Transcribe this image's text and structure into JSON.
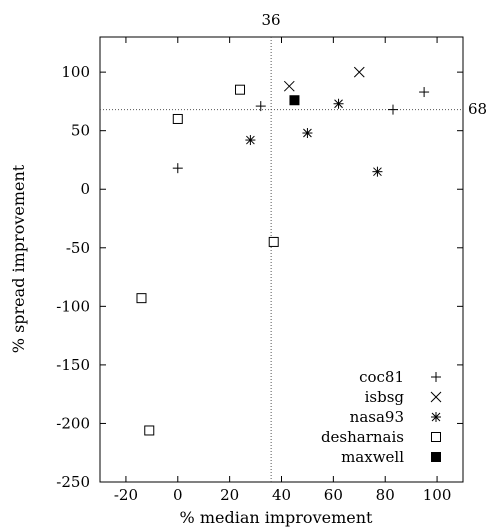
{
  "chart_data": {
    "type": "scatter",
    "title": "",
    "xlabel": "% median improvement",
    "ylabel": "% spread improvement",
    "xlim": [
      -30,
      110
    ],
    "ylim": [
      -250,
      130
    ],
    "x_ticks": [
      -20,
      0,
      20,
      40,
      60,
      80,
      100
    ],
    "y_ticks": [
      -250,
      -200,
      -150,
      -100,
      -50,
      0,
      50,
      100
    ],
    "grid": false,
    "legend_position": "bottom-right",
    "reference_lines": {
      "x": {
        "value": 36,
        "label": "36"
      },
      "y": {
        "value": 68,
        "label": "68"
      }
    },
    "series": [
      {
        "name": "coc81",
        "marker": "plus",
        "x": [
          0,
          32,
          83,
          95
        ],
        "y": [
          18,
          71,
          68,
          83
        ]
      },
      {
        "name": "isbsg",
        "marker": "cross",
        "x": [
          43,
          70
        ],
        "y": [
          88,
          100
        ]
      },
      {
        "name": "nasa93",
        "marker": "asterisk",
        "x": [
          28,
          50,
          62,
          77
        ],
        "y": [
          42,
          48,
          73,
          15
        ]
      },
      {
        "name": "desharnais",
        "marker": "open-square",
        "x": [
          0,
          24,
          37,
          -14,
          -11
        ],
        "y": [
          60,
          85,
          -45,
          -93,
          -206
        ]
      },
      {
        "name": "maxwell",
        "marker": "filled-square",
        "x": [
          45
        ],
        "y": [
          76
        ]
      }
    ]
  }
}
